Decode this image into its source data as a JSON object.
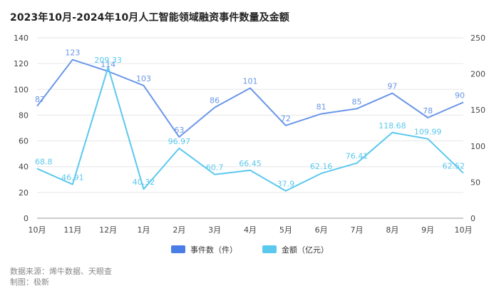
{
  "chart_data": {
    "type": "line",
    "title": "2023年10月-2024年10月人工智能领域融资事件数量及金额",
    "categories": [
      "10月",
      "11月",
      "12月",
      "1月",
      "2月",
      "3月",
      "4月",
      "5月",
      "6月",
      "7月",
      "8月",
      "9月",
      "10月"
    ],
    "y_left": {
      "ylim": [
        0,
        140
      ],
      "ticks": [
        0,
        20,
        40,
        60,
        80,
        100,
        120,
        140
      ]
    },
    "y_right": {
      "ylim": [
        0,
        250
      ],
      "ticks": [
        0,
        50,
        100,
        150,
        200,
        250
      ]
    },
    "series": [
      {
        "name": "事件数（件）",
        "axis": "left",
        "color": "#6a96e8",
        "values": [
          87,
          123,
          114,
          103,
          63,
          86,
          101,
          72,
          81,
          85,
          97,
          78,
          90
        ],
        "labels": [
          "87",
          "123",
          "114",
          "103",
          "63",
          "86",
          "101",
          "72",
          "81",
          "85",
          "97",
          "78",
          "90"
        ]
      },
      {
        "name": "金额（亿元）",
        "axis": "right",
        "color": "#5bc8ee",
        "values": [
          68.8,
          46.91,
          209.33,
          40.32,
          96.97,
          60.7,
          66.45,
          37.9,
          62.16,
          76.41,
          118.68,
          109.99,
          62.52
        ],
        "labels": [
          "68.8",
          "46.91",
          "209.33",
          "40.32",
          "96.97",
          "60.7",
          "66.45",
          "37.9",
          "62.16",
          "76.41",
          "118.68",
          "109.99",
          "62.52"
        ]
      }
    ],
    "grid": true,
    "legend_position": "bottom-center"
  },
  "legend": {
    "items": [
      {
        "label": "事件数（件）",
        "color": "#4a7ee6"
      },
      {
        "label": "金额（亿元）",
        "color": "#5bc8ee"
      }
    ]
  },
  "footer": {
    "source": "数据来源：烯牛数据、天眼查",
    "credit": "制图：极新"
  }
}
